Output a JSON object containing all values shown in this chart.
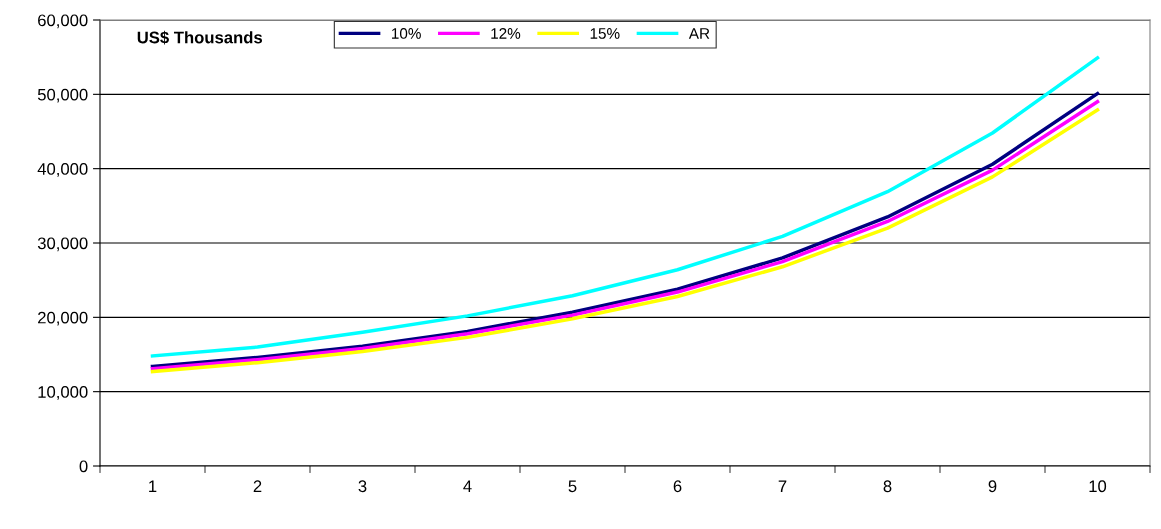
{
  "chart_data": {
    "type": "line",
    "title": "US$ Thousands",
    "categories": [
      "1",
      "2",
      "3",
      "4",
      "5",
      "6",
      "7",
      "8",
      "9",
      "10"
    ],
    "series": [
      {
        "name": "10%",
        "color": "#000080",
        "values": [
          13400,
          14600,
          16100,
          18100,
          20700,
          23800,
          28000,
          33500,
          40600,
          50100
        ]
      },
      {
        "name": "12%",
        "color": "#ff00ff",
        "values": [
          13100,
          14300,
          15800,
          17800,
          20300,
          23400,
          27500,
          32900,
          39800,
          49000
        ]
      },
      {
        "name": "15%",
        "color": "#ffff00",
        "values": [
          12700,
          13900,
          15400,
          17300,
          19800,
          22800,
          26800,
          32000,
          38900,
          47900
        ]
      },
      {
        "name": "AR",
        "color": "#00ffff",
        "values": [
          14800,
          16000,
          18000,
          20200,
          22900,
          26400,
          30900,
          36900,
          44800,
          54900
        ]
      }
    ],
    "ylim": [
      0,
      60000
    ],
    "yticks": [
      {
        "value": 0,
        "label": "0"
      },
      {
        "value": 10000,
        "label": "10,000"
      },
      {
        "value": 20000,
        "label": "20,000"
      },
      {
        "value": 30000,
        "label": "30,000"
      },
      {
        "value": 40000,
        "label": "40,000"
      },
      {
        "value": 50000,
        "label": "50,000"
      },
      {
        "value": 60000,
        "label": "60,000"
      }
    ],
    "grid": "y",
    "legend": "top",
    "marker": "none",
    "line_style": "solid"
  }
}
